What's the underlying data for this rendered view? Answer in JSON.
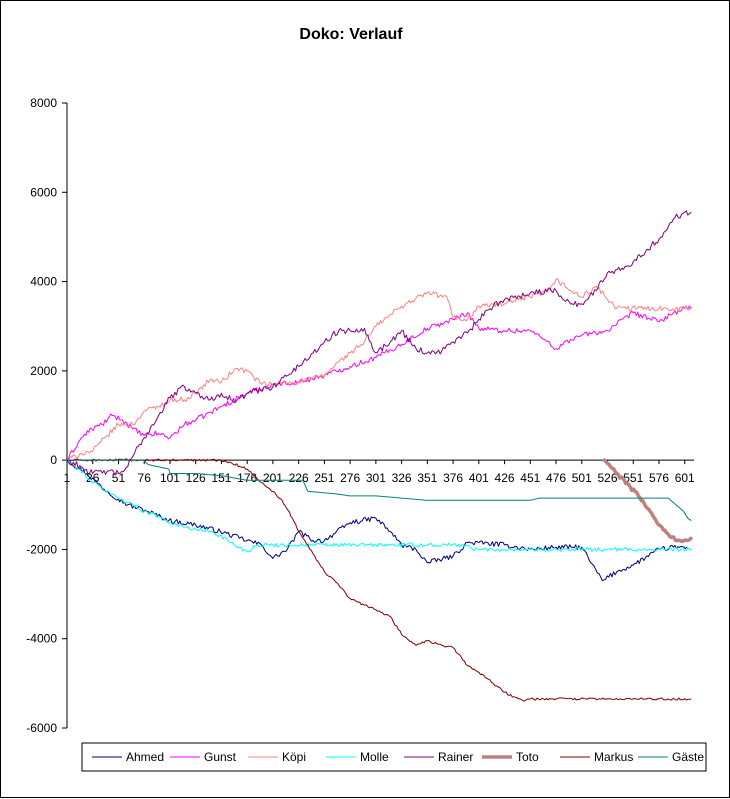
{
  "chart_data": {
    "type": "line",
    "title": "Doko: Verlauf",
    "xlabel": "",
    "ylabel": "",
    "xlim": [
      1,
      610
    ],
    "ylim": [
      -6000,
      8000
    ],
    "y_ticks": [
      -6000,
      -4000,
      -2000,
      0,
      2000,
      4000,
      6000,
      8000
    ],
    "x_ticks": [
      1,
      26,
      51,
      76,
      101,
      126,
      151,
      176,
      201,
      226,
      251,
      276,
      301,
      326,
      351,
      376,
      401,
      426,
      451,
      476,
      501,
      526,
      551,
      576,
      601
    ],
    "grid": false,
    "legend_position": "bottom",
    "series": [
      {
        "name": "Ahmed",
        "color": "#000080",
        "width": 1,
        "jitter": 55,
        "points": [
          [
            1,
            0
          ],
          [
            20,
            -300
          ],
          [
            40,
            -700
          ],
          [
            60,
            -1000
          ],
          [
            80,
            -1150
          ],
          [
            100,
            -1350
          ],
          [
            126,
            -1450
          ],
          [
            150,
            -1600
          ],
          [
            176,
            -1800
          ],
          [
            190,
            -1900
          ],
          [
            201,
            -2200
          ],
          [
            215,
            -2000
          ],
          [
            226,
            -1600
          ],
          [
            240,
            -1800
          ],
          [
            251,
            -1800
          ],
          [
            276,
            -1400
          ],
          [
            301,
            -1300
          ],
          [
            315,
            -1600
          ],
          [
            326,
            -1900
          ],
          [
            340,
            -2000
          ],
          [
            351,
            -2300
          ],
          [
            376,
            -2150
          ],
          [
            390,
            -1850
          ],
          [
            401,
            -1850
          ],
          [
            426,
            -1900
          ],
          [
            451,
            -2000
          ],
          [
            476,
            -1950
          ],
          [
            501,
            -1950
          ],
          [
            510,
            -2300
          ],
          [
            521,
            -2700
          ],
          [
            535,
            -2500
          ],
          [
            551,
            -2350
          ],
          [
            576,
            -2000
          ],
          [
            590,
            -1950
          ],
          [
            603,
            -1950
          ]
        ]
      },
      {
        "name": "Gunst",
        "color": "#FF00FF",
        "width": 1,
        "jitter": 60,
        "points": [
          [
            1,
            0
          ],
          [
            15,
            500
          ],
          [
            25,
            700
          ],
          [
            35,
            800
          ],
          [
            45,
            1000
          ],
          [
            55,
            900
          ],
          [
            65,
            700
          ],
          [
            76,
            550
          ],
          [
            90,
            600
          ],
          [
            101,
            500
          ],
          [
            115,
            800
          ],
          [
            126,
            900
          ],
          [
            151,
            1200
          ],
          [
            176,
            1500
          ],
          [
            201,
            1700
          ],
          [
            226,
            1750
          ],
          [
            251,
            1900
          ],
          [
            276,
            2100
          ],
          [
            301,
            2300
          ],
          [
            326,
            2600
          ],
          [
            351,
            2950
          ],
          [
            376,
            3150
          ],
          [
            390,
            3300
          ],
          [
            401,
            2950
          ],
          [
            426,
            2900
          ],
          [
            451,
            2900
          ],
          [
            465,
            2700
          ],
          [
            476,
            2500
          ],
          [
            490,
            2700
          ],
          [
            501,
            2800
          ],
          [
            526,
            2900
          ],
          [
            551,
            3300
          ],
          [
            576,
            3100
          ],
          [
            590,
            3300
          ],
          [
            601,
            3400
          ],
          [
            607,
            3400
          ]
        ]
      },
      {
        "name": "Köpi",
        "color": "#FF8080",
        "width": 1,
        "jitter": 60,
        "points": [
          [
            1,
            0
          ],
          [
            15,
            150
          ],
          [
            26,
            200
          ],
          [
            40,
            550
          ],
          [
            51,
            800
          ],
          [
            65,
            800
          ],
          [
            76,
            1100
          ],
          [
            90,
            1200
          ],
          [
            101,
            1350
          ],
          [
            115,
            1350
          ],
          [
            126,
            1500
          ],
          [
            140,
            1800
          ],
          [
            151,
            1750
          ],
          [
            165,
            2050
          ],
          [
            176,
            2000
          ],
          [
            190,
            1700
          ],
          [
            201,
            1700
          ],
          [
            226,
            1750
          ],
          [
            251,
            1900
          ],
          [
            265,
            2200
          ],
          [
            276,
            2400
          ],
          [
            290,
            2650
          ],
          [
            301,
            3000
          ],
          [
            326,
            3450
          ],
          [
            351,
            3750
          ],
          [
            370,
            3650
          ],
          [
            376,
            3200
          ],
          [
            390,
            3150
          ],
          [
            401,
            3450
          ],
          [
            426,
            3500
          ],
          [
            451,
            3650
          ],
          [
            470,
            3800
          ],
          [
            476,
            4050
          ],
          [
            490,
            3800
          ],
          [
            501,
            3650
          ],
          [
            515,
            3900
          ],
          [
            526,
            3600
          ],
          [
            535,
            3400
          ],
          [
            555,
            3400
          ],
          [
            580,
            3400
          ],
          [
            607,
            3400
          ]
        ]
      },
      {
        "name": "Molle",
        "color": "#00FFFF",
        "width": 1,
        "jitter": 45,
        "points": [
          [
            1,
            0
          ],
          [
            15,
            -250
          ],
          [
            26,
            -500
          ],
          [
            40,
            -700
          ],
          [
            51,
            -850
          ],
          [
            65,
            -1000
          ],
          [
            76,
            -1150
          ],
          [
            90,
            -1250
          ],
          [
            101,
            -1400
          ],
          [
            115,
            -1500
          ],
          [
            126,
            -1550
          ],
          [
            140,
            -1600
          ],
          [
            151,
            -1700
          ],
          [
            160,
            -1850
          ],
          [
            176,
            -2050
          ],
          [
            185,
            -1900
          ],
          [
            201,
            -1900
          ],
          [
            230,
            -1900
          ],
          [
            251,
            -1900
          ],
          [
            301,
            -1900
          ],
          [
            351,
            -1900
          ],
          [
            390,
            -1900
          ],
          [
            395,
            -2000
          ],
          [
            426,
            -2000
          ],
          [
            476,
            -2000
          ],
          [
            526,
            -2000
          ],
          [
            576,
            -2000
          ],
          [
            607,
            -2000
          ]
        ]
      },
      {
        "name": "Rainer",
        "color": "#800080",
        "width": 1,
        "jitter": 70,
        "points": [
          [
            1,
            0
          ],
          [
            15,
            -150
          ],
          [
            26,
            -300
          ],
          [
            40,
            -250
          ],
          [
            51,
            -300
          ],
          [
            60,
            -150
          ],
          [
            70,
            300
          ],
          [
            76,
            500
          ],
          [
            90,
            1000
          ],
          [
            101,
            1400
          ],
          [
            115,
            1650
          ],
          [
            126,
            1500
          ],
          [
            140,
            1350
          ],
          [
            151,
            1500
          ],
          [
            165,
            1300
          ],
          [
            176,
            1500
          ],
          [
            201,
            1650
          ],
          [
            226,
            2100
          ],
          [
            240,
            2400
          ],
          [
            251,
            2650
          ],
          [
            265,
            2900
          ],
          [
            276,
            2900
          ],
          [
            290,
            2950
          ],
          [
            301,
            2400
          ],
          [
            315,
            2650
          ],
          [
            326,
            2900
          ],
          [
            340,
            2500
          ],
          [
            351,
            2400
          ],
          [
            365,
            2450
          ],
          [
            376,
            2650
          ],
          [
            390,
            2850
          ],
          [
            401,
            3150
          ],
          [
            415,
            3450
          ],
          [
            426,
            3600
          ],
          [
            451,
            3750
          ],
          [
            476,
            3800
          ],
          [
            490,
            3500
          ],
          [
            501,
            3500
          ],
          [
            515,
            3800
          ],
          [
            526,
            4200
          ],
          [
            540,
            4300
          ],
          [
            551,
            4450
          ],
          [
            576,
            4950
          ],
          [
            590,
            5400
          ],
          [
            601,
            5550
          ],
          [
            607,
            5550
          ]
        ]
      },
      {
        "name": "Toto",
        "color": "#C08080",
        "width": 3.5,
        "jitter": 40,
        "points": [
          [
            523,
            0
          ],
          [
            535,
            -300
          ],
          [
            548,
            -600
          ],
          [
            556,
            -800
          ],
          [
            566,
            -1100
          ],
          [
            576,
            -1450
          ],
          [
            586,
            -1700
          ],
          [
            596,
            -1800
          ],
          [
            603,
            -1800
          ],
          [
            607,
            -1750
          ]
        ]
      },
      {
        "name": "Markus",
        "color": "#800000",
        "width": 1,
        "jitter": 25,
        "points": [
          [
            1,
            0
          ],
          [
            50,
            0
          ],
          [
            100,
            0
          ],
          [
            140,
            0
          ],
          [
            150,
            0
          ],
          [
            160,
            -50
          ],
          [
            176,
            -200
          ],
          [
            190,
            -500
          ],
          [
            201,
            -700
          ],
          [
            210,
            -900
          ],
          [
            220,
            -1300
          ],
          [
            226,
            -1600
          ],
          [
            235,
            -1900
          ],
          [
            240,
            -2100
          ],
          [
            251,
            -2500
          ],
          [
            265,
            -2800
          ],
          [
            276,
            -3100
          ],
          [
            290,
            -3250
          ],
          [
            301,
            -3350
          ],
          [
            315,
            -3500
          ],
          [
            326,
            -3900
          ],
          [
            340,
            -4150
          ],
          [
            351,
            -4050
          ],
          [
            365,
            -4150
          ],
          [
            376,
            -4200
          ],
          [
            390,
            -4600
          ],
          [
            401,
            -4750
          ],
          [
            415,
            -5000
          ],
          [
            426,
            -5200
          ],
          [
            435,
            -5300
          ],
          [
            445,
            -5400
          ],
          [
            450,
            -5350
          ],
          [
            476,
            -5350
          ],
          [
            526,
            -5350
          ],
          [
            576,
            -5350
          ],
          [
            607,
            -5350
          ]
        ]
      },
      {
        "name": "Gäste",
        "color": "#008080",
        "width": 1,
        "jitter": 0,
        "points": [
          [
            1,
            0
          ],
          [
            75,
            0
          ],
          [
            80,
            -100
          ],
          [
            90,
            -150
          ],
          [
            100,
            -200
          ],
          [
            101,
            -300
          ],
          [
            126,
            -300
          ],
          [
            151,
            -350
          ],
          [
            176,
            -450
          ],
          [
            201,
            -450
          ],
          [
            230,
            -450
          ],
          [
            235,
            -700
          ],
          [
            260,
            -750
          ],
          [
            276,
            -800
          ],
          [
            301,
            -800
          ],
          [
            326,
            -850
          ],
          [
            351,
            -900
          ],
          [
            376,
            -900
          ],
          [
            401,
            -900
          ],
          [
            451,
            -900
          ],
          [
            460,
            -850
          ],
          [
            501,
            -850
          ],
          [
            551,
            -850
          ],
          [
            585,
            -850
          ],
          [
            590,
            -950
          ],
          [
            595,
            -1050
          ],
          [
            600,
            -1150
          ],
          [
            604,
            -1300
          ],
          [
            607,
            -1350
          ]
        ]
      }
    ]
  }
}
